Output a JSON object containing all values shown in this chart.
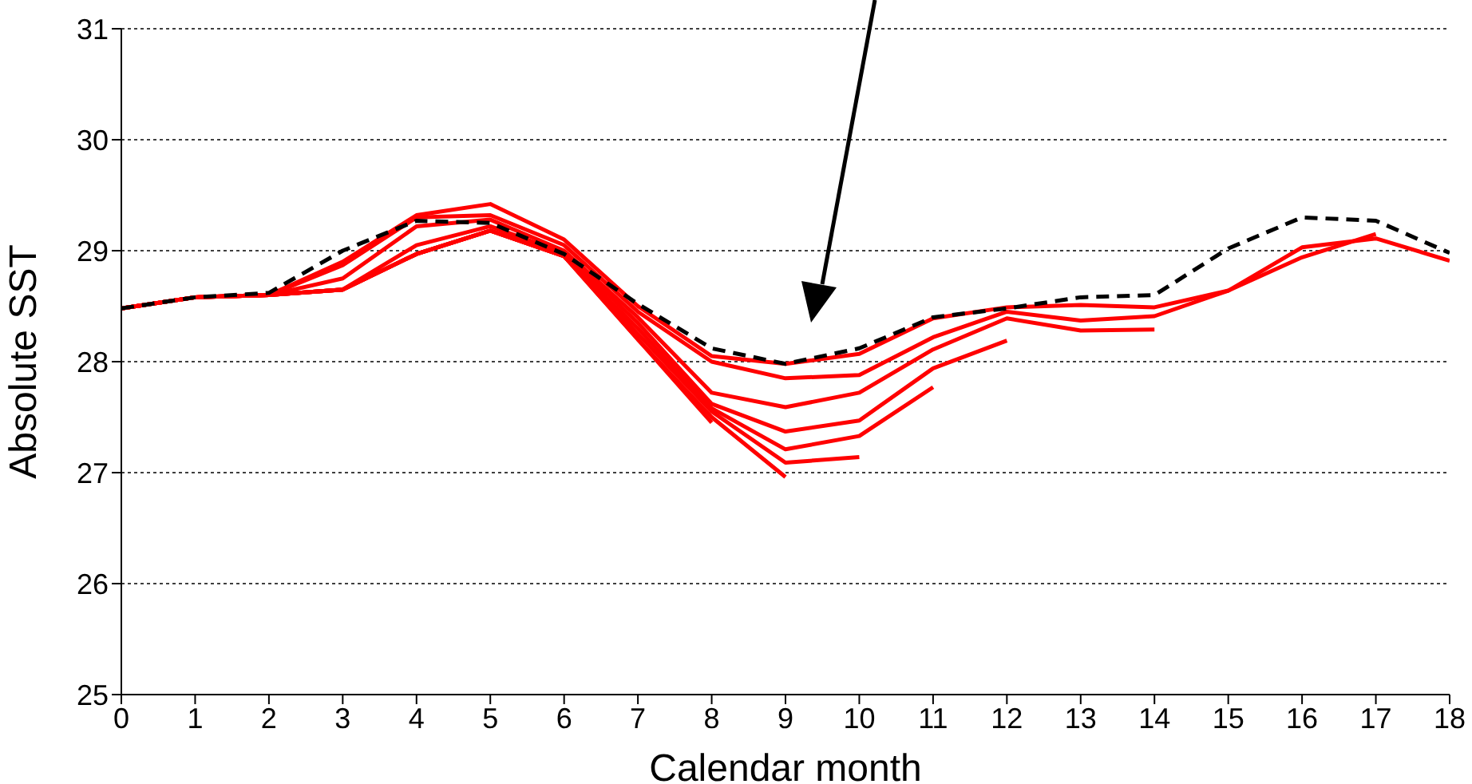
{
  "chart_data": {
    "type": "line",
    "xlabel": "Calendar month",
    "ylabel": "Absolute SST",
    "x": [
      0,
      1,
      2,
      3,
      4,
      5,
      6,
      7,
      8,
      9,
      10,
      11,
      12,
      13,
      14,
      15,
      16,
      17,
      18
    ],
    "xlim": [
      0,
      18
    ],
    "xticks": [
      0,
      1,
      2,
      3,
      4,
      5,
      6,
      7,
      8,
      9,
      10,
      11,
      12,
      13,
      14,
      15,
      16,
      17,
      18
    ],
    "ylim": [
      25,
      31
    ],
    "yticks": [
      25,
      26,
      27,
      28,
      29,
      30,
      31
    ],
    "grid": "y",
    "series": [
      {
        "color": "#ff0000",
        "line_style": "solid",
        "values": [
          28.48,
          28.58,
          28.6,
          28.9,
          29.32,
          29.42,
          29.1,
          28.5,
          28.05,
          27.98,
          28.07,
          28.39,
          28.49,
          28.51,
          28.49,
          28.64,
          29.03,
          29.11,
          28.91
        ]
      },
      {
        "color": "#ff0000",
        "line_style": "solid",
        "values": [
          28.48,
          28.58,
          28.6,
          28.87,
          29.3,
          29.32,
          29.05,
          28.45,
          28.0,
          27.85,
          27.88,
          28.22,
          28.45,
          28.37,
          28.41,
          28.64,
          28.94,
          29.15,
          null
        ]
      },
      {
        "color": "#ff0000",
        "line_style": "solid",
        "values": [
          28.48,
          28.58,
          28.6,
          28.75,
          29.22,
          29.28,
          29.0,
          28.4,
          27.72,
          27.59,
          27.72,
          28.11,
          28.39,
          28.28,
          28.29,
          null,
          null,
          null,
          null
        ]
      },
      {
        "color": "#ff0000",
        "line_style": "solid",
        "values": [
          28.48,
          28.58,
          28.6,
          28.65,
          29.05,
          29.22,
          28.98,
          28.35,
          27.62,
          27.37,
          27.47,
          27.94,
          28.19,
          null,
          null,
          null,
          null,
          null,
          null
        ]
      },
      {
        "color": "#ff0000",
        "line_style": "solid",
        "values": [
          28.48,
          28.58,
          28.6,
          28.65,
          28.97,
          29.18,
          28.95,
          28.3,
          27.58,
          27.21,
          27.33,
          27.77,
          null,
          null,
          null,
          null,
          null,
          null,
          null
        ]
      },
      {
        "color": "#ff0000",
        "line_style": "solid",
        "values": [
          28.48,
          28.58,
          28.6,
          28.65,
          28.97,
          29.18,
          28.95,
          28.25,
          27.55,
          27.09,
          27.14,
          null,
          null,
          null,
          null,
          null,
          null,
          null,
          null
        ]
      },
      {
        "color": "#ff0000",
        "line_style": "solid",
        "values": [
          28.48,
          28.58,
          28.6,
          28.65,
          28.97,
          29.18,
          28.95,
          28.2,
          27.5,
          26.96,
          null,
          null,
          null,
          null,
          null,
          null,
          null,
          null,
          null
        ]
      },
      {
        "color": "#ff0000",
        "line_style": "solid",
        "values": [
          28.48,
          28.58,
          28.6,
          28.65,
          28.97,
          29.18,
          28.95,
          28.2,
          27.45,
          null,
          null,
          null,
          null,
          null,
          null,
          null,
          null,
          null,
          null
        ]
      },
      {
        "color": "#000000",
        "line_style": "dashed",
        "values": [
          28.48,
          28.58,
          28.62,
          29.0,
          29.27,
          29.25,
          28.97,
          28.52,
          28.12,
          27.98,
          28.12,
          28.4,
          28.48,
          28.58,
          28.6,
          29.02,
          29.3,
          29.27,
          28.98
        ]
      }
    ]
  }
}
